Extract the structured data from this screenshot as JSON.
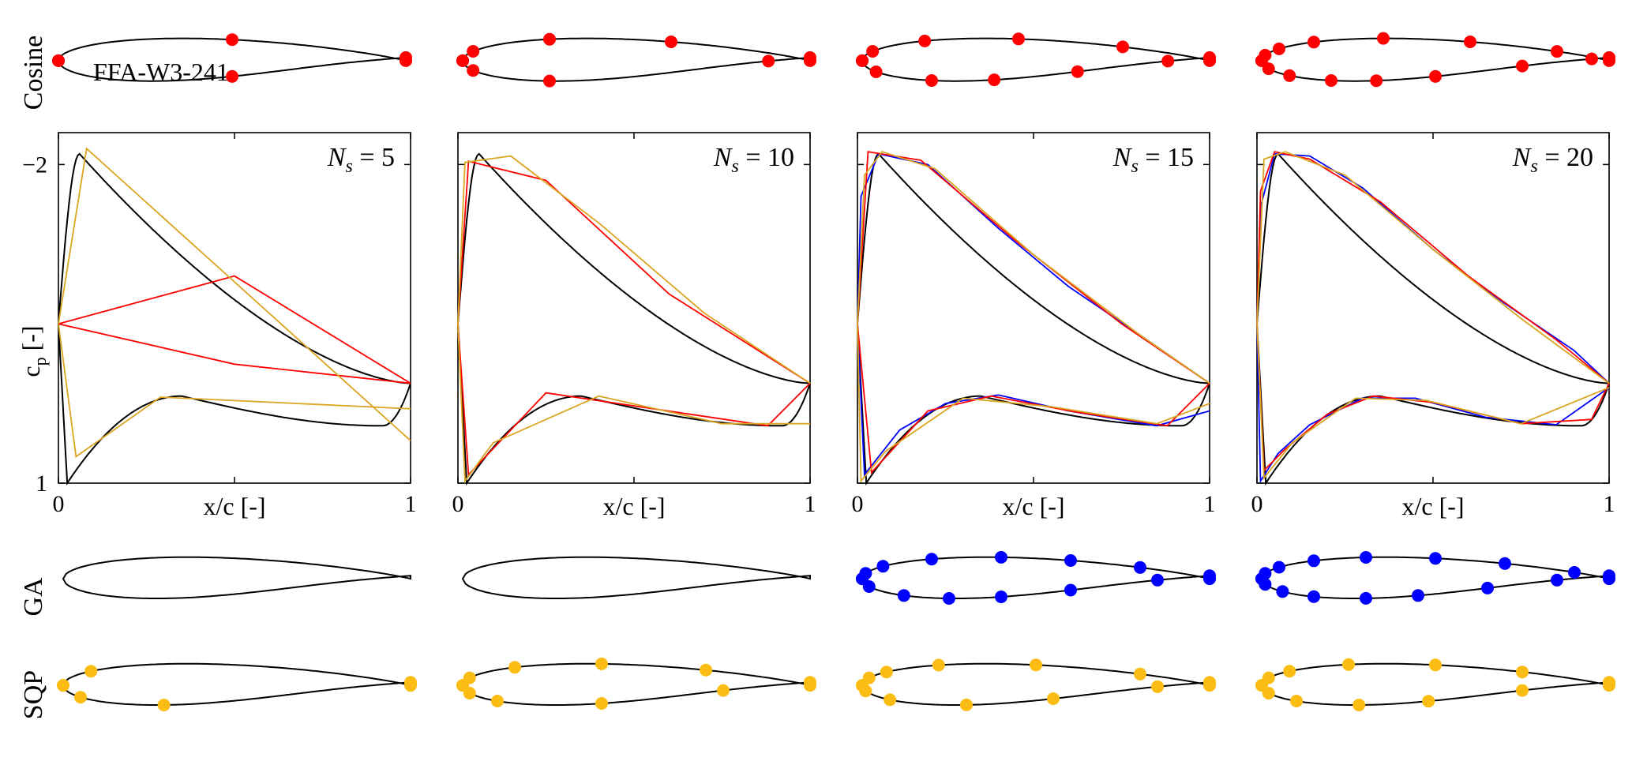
{
  "figure": {
    "airfoil_name": "FFA-W3-241",
    "row_labels": {
      "cosine": "Cosine",
      "ga": "GA",
      "sqp": "SQP"
    },
    "axis": {
      "xlabel": "x/c [-]",
      "ylabel": "c",
      "ylabel_sub": "p",
      "ylabel_unit": " [-]",
      "ns_prefix": "N",
      "ns_sub": "s",
      "ns_eq": " = "
    },
    "colors": {
      "reference": "#000000",
      "cosine": "#ff0000",
      "ga": "#0000ff",
      "sqp": "#daa520",
      "sqp_marker": "#fbbd14"
    }
  },
  "chart_data": [
    {
      "type": "line",
      "ns": 5,
      "xlabel": "x/c [-]",
      "ylabel": "cp [-]",
      "xlim": [
        0,
        1
      ],
      "ylim": [
        1,
        -2.3
      ],
      "y_inverted": true,
      "x_ticks": [
        "0",
        "1"
      ],
      "y_ticks": [
        "−2",
        "1"
      ],
      "series": [
        {
          "name": "Cosine",
          "upper": [
            [
              0,
              -0.5
            ],
            [
              0.5,
              -0.95
            ],
            [
              1,
              0.06
            ]
          ],
          "lower": [
            [
              0,
              -0.5
            ],
            [
              0.5,
              -0.12
            ],
            [
              1,
              0.06
            ]
          ]
        },
        {
          "name": "SQP",
          "upper": [
            [
              0,
              -0.5
            ],
            [
              0.08,
              -2.15
            ],
            [
              1,
              0.6
            ]
          ],
          "lower": [
            [
              0,
              -0.5
            ],
            [
              0.05,
              0.75
            ],
            [
              0.29,
              0.19
            ],
            [
              1,
              0.3
            ]
          ]
        }
      ]
    },
    {
      "type": "line",
      "ns": 10,
      "xlabel": "x/c [-]",
      "ylabel": "cp [-]",
      "xlim": [
        0,
        1
      ],
      "ylim": [
        1,
        -2.3
      ],
      "y_inverted": true,
      "x_ticks": [
        "0",
        "1"
      ],
      "y_ticks": [],
      "series": [
        {
          "name": "Cosine",
          "upper": [
            [
              0,
              -0.5
            ],
            [
              0.03,
              -2.03
            ],
            [
              0.25,
              -1.85
            ],
            [
              0.6,
              -0.78
            ],
            [
              1,
              0.06
            ]
          ],
          "lower": [
            [
              0,
              -0.5
            ],
            [
              0.03,
              0.92
            ],
            [
              0.25,
              0.15
            ],
            [
              0.88,
              0.46
            ],
            [
              1,
              0.06
            ]
          ]
        },
        {
          "name": "SQP",
          "upper": [
            [
              0,
              -0.5
            ],
            [
              0.02,
              -2.02
            ],
            [
              0.15,
              -2.08
            ],
            [
              0.4,
              -1.45
            ],
            [
              0.7,
              -0.6
            ],
            [
              1,
              0.06
            ]
          ],
          "lower": [
            [
              0,
              -0.5
            ],
            [
              0.02,
              0.98
            ],
            [
              0.1,
              0.62
            ],
            [
              0.4,
              0.18
            ],
            [
              0.75,
              0.44
            ],
            [
              1,
              0.44
            ]
          ]
        }
      ]
    },
    {
      "type": "line",
      "ns": 15,
      "xlabel": "x/c [-]",
      "ylabel": "cp [-]",
      "xlim": [
        0,
        1
      ],
      "ylim": [
        1,
        -2.3
      ],
      "y_inverted": true,
      "x_ticks": [
        "0",
        "1"
      ],
      "y_ticks": [],
      "series": [
        {
          "name": "GA",
          "upper": [
            [
              0,
              -0.5
            ],
            [
              0.01,
              -1.7
            ],
            [
              0.06,
              -2.1
            ],
            [
              0.2,
              -2.0
            ],
            [
              0.4,
              -1.4
            ],
            [
              0.6,
              -0.85
            ],
            [
              0.8,
              -0.4
            ],
            [
              1,
              0.06
            ]
          ],
          "lower": [
            [
              0,
              -0.5
            ],
            [
              0.02,
              0.92
            ],
            [
              0.12,
              0.5
            ],
            [
              0.25,
              0.25
            ],
            [
              0.4,
              0.17
            ],
            [
              0.6,
              0.32
            ],
            [
              0.85,
              0.46
            ],
            [
              1,
              0.32
            ]
          ]
        },
        {
          "name": "Cosine",
          "upper": [
            [
              0,
              -0.5
            ],
            [
              0.03,
              -2.12
            ],
            [
              0.18,
              -2.04
            ],
            [
              0.45,
              -1.28
            ],
            [
              0.75,
              -0.5
            ],
            [
              1,
              0.06
            ]
          ],
          "lower": [
            [
              0,
              -0.5
            ],
            [
              0.04,
              0.9
            ],
            [
              0.2,
              0.32
            ],
            [
              0.38,
              0.18
            ],
            [
              0.62,
              0.33
            ],
            [
              0.88,
              0.46
            ],
            [
              1,
              0.06
            ]
          ]
        },
        {
          "name": "SQP",
          "upper": [
            [
              0,
              -0.5
            ],
            [
              0.02,
              -1.9
            ],
            [
              0.07,
              -2.12
            ],
            [
              0.22,
              -1.96
            ],
            [
              0.5,
              -1.15
            ],
            [
              0.8,
              -0.4
            ],
            [
              1,
              0.06
            ]
          ],
          "lower": [
            [
              0,
              -0.5
            ],
            [
              0.01,
              0.98
            ],
            [
              0.08,
              0.7
            ],
            [
              0.3,
              0.2
            ],
            [
              0.55,
              0.28
            ],
            [
              0.85,
              0.44
            ],
            [
              1,
              0.25
            ]
          ]
        }
      ]
    },
    {
      "type": "line",
      "ns": 20,
      "xlabel": "x/c [-]",
      "ylabel": "cp [-]",
      "xlim": [
        0,
        1
      ],
      "ylim": [
        1,
        -2.3
      ],
      "y_inverted": true,
      "x_ticks": [
        "0",
        "1"
      ],
      "y_ticks": [],
      "series": [
        {
          "name": "GA",
          "upper": [
            [
              0,
              -0.5
            ],
            [
              0.01,
              -1.6
            ],
            [
              0.05,
              -2.1
            ],
            [
              0.15,
              -2.08
            ],
            [
              0.3,
              -1.78
            ],
            [
              0.5,
              -1.2
            ],
            [
              0.7,
              -0.7
            ],
            [
              0.9,
              -0.25
            ],
            [
              1,
              0.06
            ]
          ],
          "lower": [
            [
              0,
              -0.5
            ],
            [
              0.01,
              0.98
            ],
            [
              0.06,
              0.72
            ],
            [
              0.15,
              0.45
            ],
            [
              0.3,
              0.2
            ],
            [
              0.45,
              0.2
            ],
            [
              0.65,
              0.38
            ],
            [
              0.85,
              0.45
            ],
            [
              1,
              0.1
            ]
          ]
        },
        {
          "name": "Cosine",
          "upper": [
            [
              0,
              -0.5
            ],
            [
              0.01,
              -1.75
            ],
            [
              0.05,
              -2.12
            ],
            [
              0.15,
              -2.05
            ],
            [
              0.35,
              -1.65
            ],
            [
              0.6,
              -0.95
            ],
            [
              0.85,
              -0.35
            ],
            [
              1,
              0.06
            ]
          ],
          "lower": [
            [
              0,
              -0.5
            ],
            [
              0.02,
              0.88
            ],
            [
              0.08,
              0.68
            ],
            [
              0.2,
              0.35
            ],
            [
              0.33,
              0.18
            ],
            [
              0.5,
              0.24
            ],
            [
              0.75,
              0.44
            ],
            [
              0.95,
              0.4
            ],
            [
              1,
              0.06
            ]
          ]
        },
        {
          "name": "SQP",
          "upper": [
            [
              0,
              -0.5
            ],
            [
              0.02,
              -2.05
            ],
            [
              0.08,
              -2.12
            ],
            [
              0.25,
              -1.9
            ],
            [
              0.5,
              -1.2
            ],
            [
              0.75,
              -0.55
            ],
            [
              1,
              0.06
            ]
          ],
          "lower": [
            [
              0,
              -0.5
            ],
            [
              0.02,
              0.95
            ],
            [
              0.1,
              0.62
            ],
            [
              0.28,
              0.2
            ],
            [
              0.48,
              0.22
            ],
            [
              0.75,
              0.44
            ],
            [
              1,
              0.1
            ]
          ]
        }
      ]
    }
  ]
}
